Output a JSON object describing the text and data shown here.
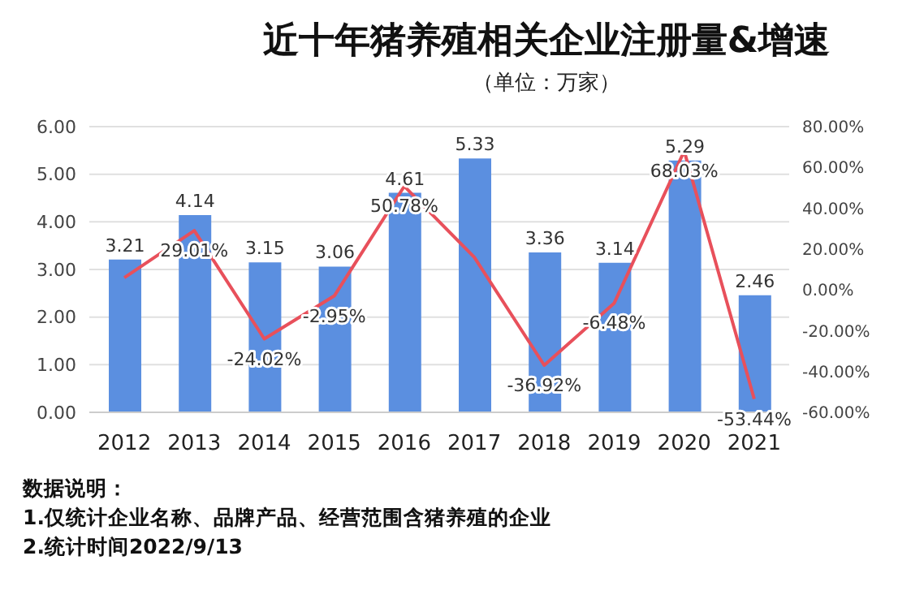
{
  "chart_data": {
    "type": "bar",
    "title": "近十年猪养殖相关企业注册量&增速",
    "subtitle": "（单位：万家）",
    "categories": [
      "2012",
      "2013",
      "2014",
      "2015",
      "2016",
      "2017",
      "2018",
      "2019",
      "2020",
      "2021"
    ],
    "series": [
      {
        "color": "#5b8fe0",
        "values": [
          3.21,
          4.14,
          3.15,
          3.06,
          4.61,
          5.33,
          3.36,
          3.14,
          5.29,
          2.46
        ],
        "value_labels": [
          "3.21",
          "4.14",
          "3.15",
          "3.06",
          "4.61",
          "5.33",
          "3.36",
          "3.14",
          "5.29",
          "2.46"
        ]
      },
      {
        "type": "line",
        "axis": "y2",
        "color": "#e8505b",
        "values": [
          6,
          29.01,
          -24.02,
          -2.95,
          50.78,
          16,
          -36.92,
          -6.48,
          68.03,
          -53.44
        ],
        "value_labels": [
          null,
          "29.01%",
          "-24.02%",
          "-2.95%",
          "50.78%",
          null,
          "-36.92%",
          "-6.48%",
          "68.03%",
          "-53.44%"
        ]
      }
    ],
    "ylim": [
      0,
      6
    ],
    "yticks": [
      {
        "value": 0,
        "label": "0.00"
      },
      {
        "value": 1,
        "label": "1.00"
      },
      {
        "value": 2,
        "label": "2.00"
      },
      {
        "value": 3,
        "label": "3.00"
      },
      {
        "value": 4,
        "label": "4.00"
      },
      {
        "value": 5,
        "label": "5.00"
      },
      {
        "value": 6,
        "label": "6.00"
      }
    ],
    "y2lim": [
      -60,
      80
    ],
    "y2ticks": [
      {
        "value": -60,
        "label": "-60.00%"
      },
      {
        "value": -40,
        "label": "-40.00%"
      },
      {
        "value": -20,
        "label": "-20.00%"
      },
      {
        "value": 0,
        "label": "0.00%"
      },
      {
        "value": 20,
        "label": "20.00%"
      },
      {
        "value": 40,
        "label": "40.00%"
      },
      {
        "value": 60,
        "label": "60.00%"
      },
      {
        "value": 80,
        "label": "80.00%"
      }
    ],
    "grid": "y",
    "legend": false,
    "marker": "none",
    "line_style": "solid",
    "annotations": [
      "数据说明：",
      "1.仅统计企业名称、品牌产品、经营范围含猪养殖的企业",
      "2.统计时间2022/9/13"
    ]
  }
}
